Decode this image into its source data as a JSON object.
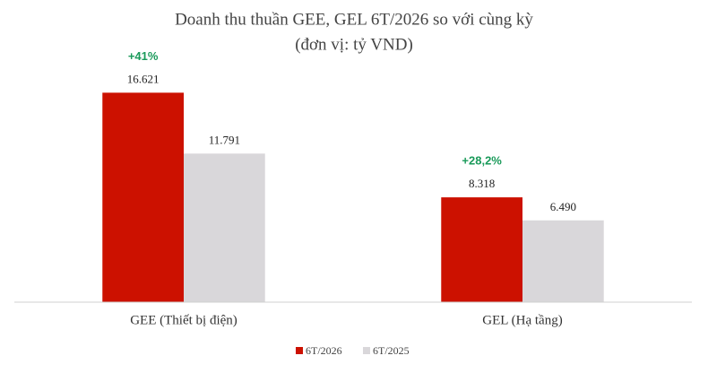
{
  "chart_data": {
    "type": "bar",
    "title": "Doanh thu thuần GEE, GEL 6T/2026 so với cùng kỳ",
    "subtitle": "(đơn vị: tỷ VND)",
    "categories": [
      "GEE (Thiết bị điện)",
      "GEL (Hạ tầng)"
    ],
    "annotations": [
      "+41%",
      "+28,2%"
    ],
    "series": [
      {
        "name": "6T/2026",
        "color": "#cc1100",
        "values": [
          16621,
          8318
        ],
        "value_labels": [
          "16.621",
          "8.318"
        ]
      },
      {
        "name": "6T/2025",
        "color": "#d9d7da",
        "values": [
          11791,
          6490
        ],
        "value_labels": [
          "11.791",
          "6.490"
        ]
      }
    ],
    "ylim": [
      0,
      18000
    ]
  }
}
